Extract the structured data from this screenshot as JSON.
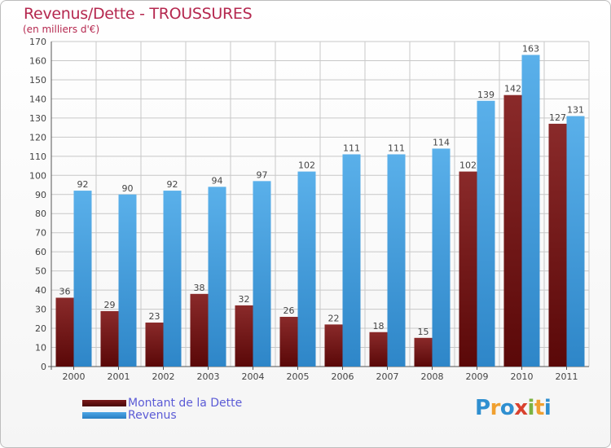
{
  "title": "Revenus/Dette - TROUSSURES",
  "subtitle": "(en milliers d'€)",
  "colors": {
    "title": "#b5284f",
    "axis_text": "#444444",
    "grid": "#c8c8c8",
    "dette": "#7a1a1a",
    "revenus": "#4da6e6",
    "legend_text": "#5b5bd6"
  },
  "chart_data": {
    "type": "bar",
    "title": "Revenus/Dette - TROUSSURES",
    "subtitle": "(en milliers d'€)",
    "xlabel": "",
    "ylabel": "",
    "ylim": [
      0,
      170
    ],
    "yticks": [
      0,
      10,
      20,
      30,
      40,
      50,
      60,
      70,
      80,
      90,
      100,
      110,
      120,
      130,
      140,
      150,
      160,
      170
    ],
    "grid": true,
    "legend_position": "bottom-left",
    "categories": [
      "2000",
      "2001",
      "2002",
      "2003",
      "2004",
      "2005",
      "2006",
      "2007",
      "2008",
      "2009",
      "2010",
      "2011"
    ],
    "series": [
      {
        "name": "Montant de la Dette",
        "color": "#7a1a1a",
        "values": [
          36,
          29,
          23,
          38,
          32,
          26,
          22,
          18,
          15,
          102,
          142,
          127
        ]
      },
      {
        "name": "Revenus",
        "color": "#4da6e6",
        "values": [
          92,
          90,
          92,
          94,
          97,
          102,
          111,
          111,
          114,
          139,
          163,
          131
        ]
      }
    ]
  },
  "legend": {
    "items": [
      {
        "label": "Montant de la Dette",
        "color": "#7a1a1a"
      },
      {
        "label": "Revenus",
        "color": "#4da6e6"
      }
    ]
  },
  "logo": {
    "text": "Proxiti",
    "letters": [
      {
        "ch": "P",
        "color": "#2f8fd0"
      },
      {
        "ch": "r",
        "color": "#f0a030"
      },
      {
        "ch": "o",
        "color": "#2f8fd0"
      },
      {
        "ch": "x",
        "color": "#d9412e"
      },
      {
        "ch": "i",
        "color": "#7cb342"
      },
      {
        "ch": "t",
        "color": "#f0a030"
      },
      {
        "ch": "i",
        "color": "#2f8fd0"
      }
    ]
  }
}
